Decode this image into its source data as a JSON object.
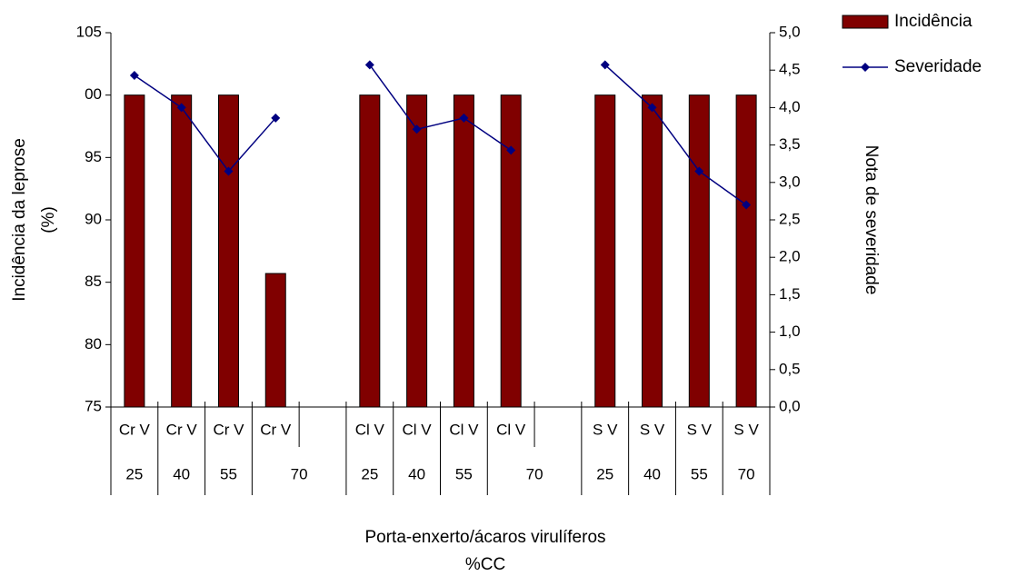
{
  "chart_data": {
    "type": "bar_line",
    "x_title": [
      "Porta-enxerto/ácaros virulíferos",
      "%CC"
    ],
    "y_title": [
      "Incidência da leprose",
      "(%)"
    ],
    "y2_title": "Nota de severidade",
    "categories": [
      "Cr V",
      "Cr V",
      "Cr V",
      "Cr V",
      null,
      "Cl V",
      "Cl V",
      "Cl V",
      "Cl V",
      null,
      "S V",
      "S V",
      "S V",
      "S V"
    ],
    "subcategories": [
      "25",
      "40",
      "55",
      "70",
      null,
      "25",
      "40",
      "55",
      "70",
      null,
      "25",
      "40",
      "55",
      "70"
    ],
    "series": [
      {
        "name": "Incidência",
        "type": "bar",
        "color": "#800000",
        "values": [
          100,
          100,
          100,
          85.7,
          null,
          100,
          100,
          100,
          100,
          null,
          100,
          100,
          100,
          100
        ]
      },
      {
        "name": "Severidade",
        "type": "line",
        "axis": "y2",
        "color": "#000080",
        "values": [
          4.43,
          4.0,
          3.15,
          3.86,
          null,
          4.57,
          3.71,
          3.86,
          3.43,
          null,
          4.57,
          4.0,
          3.15,
          2.7
        ]
      }
    ],
    "ylim": [
      75,
      105
    ],
    "yticks": [
      75,
      80,
      85,
      90,
      95,
      {
        "value": 100,
        "label": "00"
      },
      105
    ],
    "y2lim": [
      0,
      5
    ],
    "y2ticks": [
      {
        "value": 0,
        "label": "0,0"
      },
      {
        "value": 0.5,
        "label": "0,5"
      },
      {
        "value": 1,
        "label": "1,0"
      },
      {
        "value": 1.5,
        "label": "1,5"
      },
      {
        "value": 2,
        "label": "2,0"
      },
      {
        "value": 2.5,
        "label": "2,5"
      },
      {
        "value": 3,
        "label": "3,0"
      },
      {
        "value": 3.5,
        "label": "3,5"
      },
      {
        "value": 4,
        "label": "4,0"
      },
      {
        "value": 4.5,
        "label": "4,5"
      },
      {
        "value": 5,
        "label": "5,0"
      }
    ],
    "legend": "top-right"
  }
}
